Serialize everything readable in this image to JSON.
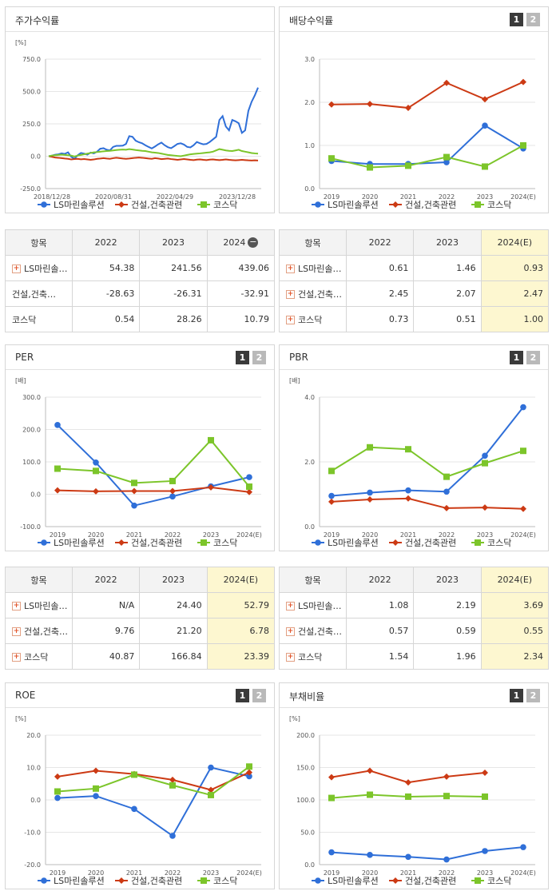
{
  "legend": {
    "s1": "LS마린솔루션",
    "s2": "건설,건축관련",
    "s3": "코스닥"
  },
  "colors": {
    "s1": "#2f6fd8",
    "s2": "#cc3a14",
    "s3": "#7cc52a"
  },
  "panels": {
    "stock": {
      "title": "주가수익률"
    },
    "div": {
      "title": "배당수익률"
    },
    "per": {
      "title": "PER"
    },
    "pbr": {
      "title": "PBR"
    },
    "roe": {
      "title": "ROE"
    },
    "debt": {
      "title": "부채비율"
    }
  },
  "pager": {
    "p1": "1",
    "p2": "2"
  },
  "tables": {
    "stock": {
      "header": [
        "항목",
        "2022",
        "2023",
        "2024"
      ],
      "rows": [
        {
          "name": "LS마린솔…",
          "v": [
            "54.38",
            "241.56",
            "439.06"
          ]
        },
        {
          "name": "건설,건축…",
          "v": [
            "-28.63",
            "-26.31",
            "-32.91"
          ]
        },
        {
          "name": "코스닥",
          "v": [
            "0.54",
            "28.26",
            "10.79"
          ]
        }
      ]
    },
    "div": {
      "header": [
        "항목",
        "2022",
        "2023",
        "2024(E)"
      ],
      "rows": [
        {
          "name": "LS마린솔…",
          "v": [
            "0.61",
            "1.46",
            "0.93"
          ]
        },
        {
          "name": "건설,건축…",
          "v": [
            "2.45",
            "2.07",
            "2.47"
          ]
        },
        {
          "name": "코스닥",
          "v": [
            "0.73",
            "0.51",
            "1.00"
          ]
        }
      ]
    },
    "per": {
      "header": [
        "항목",
        "2022",
        "2023",
        "2024(E)"
      ],
      "rows": [
        {
          "name": "LS마린솔…",
          "v": [
            "N/A",
            "24.40",
            "52.79"
          ]
        },
        {
          "name": "건설,건축…",
          "v": [
            "9.76",
            "21.20",
            "6.78"
          ]
        },
        {
          "name": "코스닥",
          "v": [
            "40.87",
            "166.84",
            "23.39"
          ]
        }
      ]
    },
    "pbr": {
      "header": [
        "항목",
        "2022",
        "2023",
        "2024(E)"
      ],
      "rows": [
        {
          "name": "LS마린솔…",
          "v": [
            "1.08",
            "2.19",
            "3.69"
          ]
        },
        {
          "name": "건설,건축…",
          "v": [
            "0.57",
            "0.59",
            "0.55"
          ]
        },
        {
          "name": "코스닥",
          "v": [
            "1.54",
            "1.96",
            "2.34"
          ]
        }
      ]
    }
  },
  "chart_data": [
    {
      "id": "stock",
      "type": "line",
      "unit": "[%]",
      "ylim": [
        -250,
        750
      ],
      "yticks": [
        "750.0",
        "500.0",
        "250.0",
        "0.0",
        "-250.0"
      ],
      "xticks": [
        "2018/12/28",
        "2020/08/31",
        "2022/04/29",
        "2023/12/28"
      ],
      "series": [
        {
          "name": "LS마린솔루션",
          "values": [
            0,
            5,
            12,
            15,
            22,
            18,
            30,
            -5,
            -20,
            8,
            25,
            20,
            12,
            28,
            22,
            35,
            58,
            62,
            50,
            45,
            72,
            80,
            80,
            82,
            95,
            155,
            150,
            120,
            108,
            100,
            85,
            72,
            60,
            75,
            92,
            105,
            85,
            70,
            62,
            78,
            95,
            100,
            90,
            72,
            68,
            85,
            110,
            100,
            92,
            95,
            110,
            130,
            150,
            280,
            310,
            230,
            200,
            280,
            270,
            255,
            180,
            200,
            350,
            420,
            470,
            530
          ]
        },
        {
          "name": "건설,건축관련",
          "values": [
            0,
            -5,
            -10,
            -12,
            -15,
            -18,
            -20,
            -25,
            -22,
            -20,
            -24,
            -22,
            -25,
            -28,
            -25,
            -20,
            -18,
            -15,
            -18,
            -20,
            -15,
            -12,
            -15,
            -18,
            -20,
            -18,
            -15,
            -12,
            -10,
            -12,
            -15,
            -18,
            -20,
            -15,
            -18,
            -22,
            -20,
            -18,
            -22,
            -25,
            -28,
            -25,
            -22,
            -25,
            -28,
            -30,
            -26,
            -25,
            -28,
            -30,
            -26,
            -25,
            -28,
            -30,
            -28,
            -25,
            -28,
            -30,
            -32,
            -30,
            -28,
            -30,
            -32,
            -33,
            -32,
            -33
          ]
        },
        {
          "name": "코스닥",
          "values": [
            0,
            5,
            8,
            10,
            12,
            10,
            8,
            5,
            -2,
            5,
            10,
            15,
            20,
            25,
            30,
            32,
            35,
            38,
            40,
            42,
            45,
            48,
            50,
            52,
            50,
            55,
            52,
            48,
            45,
            42,
            40,
            35,
            30,
            28,
            25,
            20,
            15,
            10,
            8,
            5,
            2,
            0,
            5,
            10,
            15,
            18,
            20,
            22,
            25,
            28,
            30,
            35,
            45,
            55,
            50,
            45,
            42,
            40,
            45,
            50,
            40,
            35,
            30,
            25,
            22,
            20
          ]
        }
      ]
    },
    {
      "id": "div",
      "type": "line",
      "unit": "",
      "ylim": [
        0,
        3
      ],
      "yticks": [
        "3.0",
        "2.0",
        "1.0",
        "0.0"
      ],
      "categories": [
        "2019",
        "2020",
        "2021",
        "2022",
        "2023",
        "2024(E)"
      ],
      "series": [
        {
          "name": "LS마린솔루션",
          "values": [
            0.64,
            0.57,
            0.57,
            0.61,
            1.46,
            0.93
          ]
        },
        {
          "name": "건설,건축관련",
          "values": [
            1.95,
            1.96,
            1.87,
            2.45,
            2.07,
            2.47
          ]
        },
        {
          "name": "코스닥",
          "values": [
            0.7,
            0.49,
            0.53,
            0.73,
            0.51,
            1.0
          ]
        }
      ]
    },
    {
      "id": "per",
      "type": "line",
      "unit": "[배]",
      "ylim": [
        -100,
        300
      ],
      "yticks": [
        "300.0",
        "200.0",
        "100.0",
        "0.0",
        "-100.0"
      ],
      "categories": [
        "2019",
        "2020",
        "2021",
        "2022",
        "2023",
        "2024(E)"
      ],
      "series": [
        {
          "name": "LS마린솔루션",
          "values": [
            214,
            98,
            -35,
            -7,
            24.4,
            52.79
          ]
        },
        {
          "name": "건설,건축관련",
          "values": [
            12,
            9,
            10,
            9.76,
            21.2,
            6.78
          ]
        },
        {
          "name": "코스닥",
          "values": [
            79,
            72,
            35,
            40.87,
            166.84,
            23.39
          ]
        }
      ]
    },
    {
      "id": "pbr",
      "type": "line",
      "unit": "[배]",
      "ylim": [
        0,
        4
      ],
      "yticks": [
        "4.0",
        "2.0",
        "0.0"
      ],
      "categories": [
        "2019",
        "2020",
        "2021",
        "2022",
        "2023",
        "2024(E)"
      ],
      "series": [
        {
          "name": "LS마린솔루션",
          "values": [
            0.95,
            1.05,
            1.12,
            1.08,
            2.19,
            3.69
          ]
        },
        {
          "name": "건설,건축관련",
          "values": [
            0.77,
            0.84,
            0.87,
            0.57,
            0.59,
            0.55
          ]
        },
        {
          "name": "코스닥",
          "values": [
            1.72,
            2.45,
            2.39,
            1.54,
            1.96,
            2.34
          ]
        }
      ]
    },
    {
      "id": "roe",
      "type": "line",
      "unit": "[%]",
      "ylim": [
        -20,
        20
      ],
      "yticks": [
        "20.0",
        "10.0",
        "0.0",
        "-10.0",
        "-20.0"
      ],
      "categories": [
        "2019",
        "2020",
        "2021",
        "2022",
        "2023",
        "2024(E)"
      ],
      "series": [
        {
          "name": "LS마린솔루션",
          "values": [
            0.6,
            1.2,
            -2.8,
            -11.1,
            10.0,
            7.3
          ]
        },
        {
          "name": "건설,건축관련",
          "values": [
            7.2,
            9.0,
            8.0,
            6.2,
            3.1,
            8.5
          ]
        },
        {
          "name": "코스닥",
          "values": [
            2.6,
            3.5,
            7.8,
            4.5,
            1.5,
            10.3
          ]
        }
      ]
    },
    {
      "id": "debt",
      "type": "line",
      "unit": "[%]",
      "ylim": [
        0,
        200
      ],
      "yticks": [
        "200.0",
        "150.0",
        "100.0",
        "50.0",
        "0.0"
      ],
      "categories": [
        "2019",
        "2020",
        "2021",
        "2022",
        "2023",
        "2024(E)"
      ],
      "series": [
        {
          "name": "LS마린솔루션",
          "values": [
            19,
            15,
            12,
            8,
            21,
            27
          ]
        },
        {
          "name": "건설,건축관련",
          "values": [
            135,
            145,
            127,
            136,
            142,
            null
          ]
        },
        {
          "name": "코스닥",
          "values": [
            103,
            108,
            105,
            106,
            105,
            null
          ]
        }
      ]
    }
  ]
}
